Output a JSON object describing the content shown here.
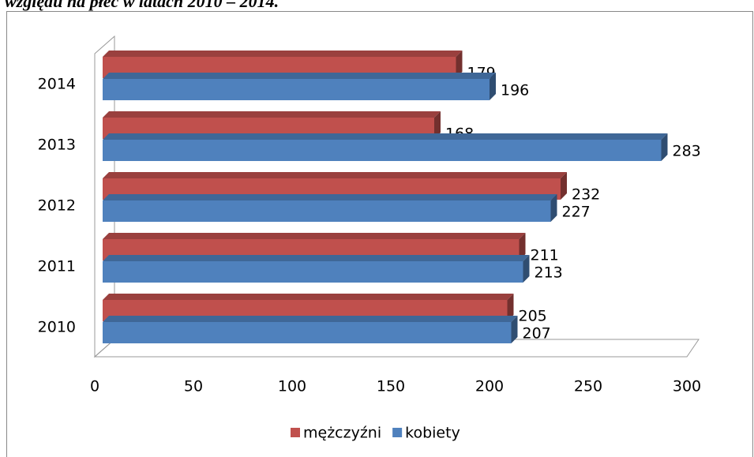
{
  "caption": "względu na płeć w latach 2010 – 2014.",
  "chart_data": {
    "type": "bar3d",
    "orientation": "horizontal",
    "categories": [
      "2010",
      "2011",
      "2012",
      "2013",
      "2014"
    ],
    "series": [
      {
        "name": "mężczyźni",
        "color": "#c0504d",
        "values": [
          205,
          211,
          232,
          168,
          179
        ]
      },
      {
        "name": "kobiety",
        "color": "#4f81bd",
        "values": [
          207,
          213,
          227,
          283,
          196
        ]
      }
    ],
    "xlim": [
      0,
      300
    ],
    "xticks": [
      0,
      50,
      100,
      150,
      200,
      250,
      300
    ],
    "legend": "bottom"
  }
}
